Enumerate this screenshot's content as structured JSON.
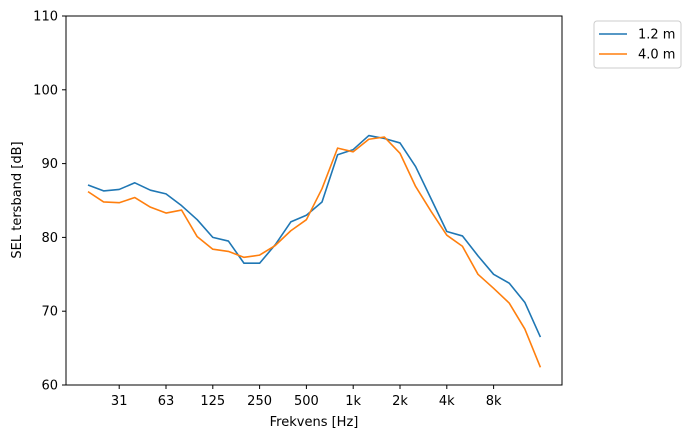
{
  "chart_data": {
    "type": "line",
    "title": "",
    "xlabel": "Frekvens [Hz]",
    "ylabel": "SEL tersband [dB]",
    "ylim": [
      60,
      110
    ],
    "yticks": [
      "60",
      "70",
      "80",
      "90",
      "100",
      "110"
    ],
    "x": [
      "20",
      "25",
      "31.5",
      "40",
      "50",
      "63",
      "80",
      "100",
      "125",
      "160",
      "200",
      "250",
      "315",
      "400",
      "500",
      "630",
      "800",
      "1k",
      "1.25k",
      "1.6k",
      "2k",
      "2.5k",
      "3.15k",
      "4k",
      "5k",
      "6.3k",
      "8k",
      "10k",
      "12.5k",
      "16k"
    ],
    "xticks": [
      {
        "band": "31.5",
        "label": "31"
      },
      {
        "band": "63",
        "label": "63"
      },
      {
        "band": "125",
        "label": "125"
      },
      {
        "band": "250",
        "label": "250"
      },
      {
        "band": "500",
        "label": "500"
      },
      {
        "band": "1k",
        "label": "1k"
      },
      {
        "band": "2k",
        "label": "2k"
      },
      {
        "band": "4k",
        "label": "4k"
      },
      {
        "band": "8k",
        "label": "8k"
      }
    ],
    "series": [
      {
        "name": "1.2 m",
        "color": "#1f77b4",
        "values": [
          87.1,
          86.3,
          86.5,
          87.4,
          86.4,
          85.9,
          84.3,
          82.4,
          80.0,
          79.5,
          76.5,
          76.5,
          79.0,
          82.1,
          83.0,
          84.8,
          91.2,
          91.9,
          93.8,
          93.4,
          92.8,
          89.6,
          85.2,
          80.8,
          80.2,
          77.5,
          75.0,
          73.8,
          71.2,
          66.5
        ]
      },
      {
        "name": "4.0 m",
        "color": "#ff7f0e",
        "values": [
          86.2,
          84.8,
          84.7,
          85.4,
          84.1,
          83.3,
          83.7,
          80.1,
          78.4,
          78.1,
          77.3,
          77.6,
          78.9,
          80.9,
          82.4,
          86.6,
          92.1,
          91.6,
          93.3,
          93.6,
          91.4,
          86.9,
          83.5,
          80.3,
          78.8,
          75.0,
          73.1,
          71.1,
          67.6,
          62.4
        ]
      }
    ],
    "grid": false,
    "legend": "outside-top-right"
  }
}
